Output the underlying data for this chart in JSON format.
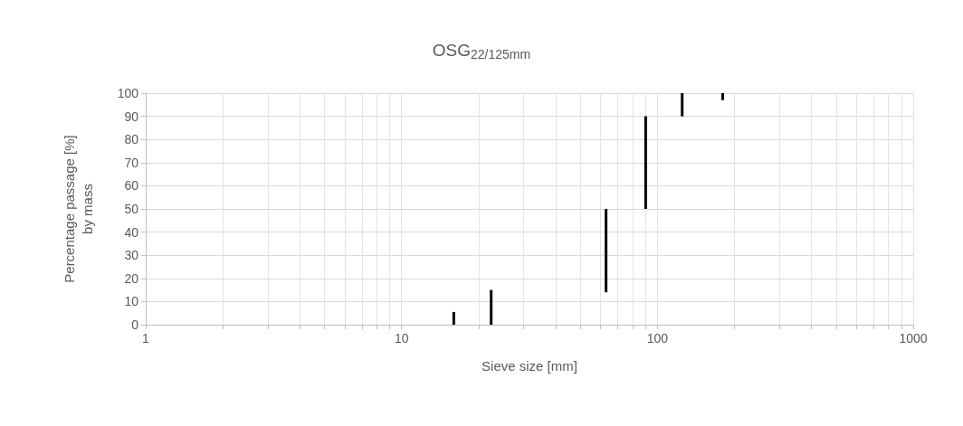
{
  "chart_data": {
    "type": "bar",
    "title": "OSG$_{22/125mm}$",
    "xlabel": "Sieve size [mm]",
    "ylabel": "Percentage passage [%]\nby mass",
    "log": "x",
    "x": [
      16,
      22.4,
      63,
      90,
      125,
      180
    ],
    "base": [
      0,
      0,
      14,
      50,
      90,
      97
    ],
    "values": [
      5.5,
      15,
      36,
      40,
      10,
      3
    ],
    "color": "#000000",
    "xlim": [
      1,
      1000
    ],
    "xticks": [
      1,
      {
        "value": 2,
        "label": null
      },
      {
        "value": 3,
        "label": null
      },
      {
        "value": 4,
        "label": null
      },
      {
        "value": 5,
        "label": null
      },
      {
        "value": 6,
        "label": null
      },
      {
        "value": 7,
        "label": null
      },
      {
        "value": 8,
        "label": null
      },
      {
        "value": 9,
        "label": null
      },
      10,
      {
        "value": 20,
        "label": null
      },
      {
        "value": 30,
        "label": null
      },
      {
        "value": 40,
        "label": null
      },
      {
        "value": 50,
        "label": null
      },
      {
        "value": 60,
        "label": null
      },
      {
        "value": 70,
        "label": null
      },
      {
        "value": 80,
        "label": null
      },
      {
        "value": 90,
        "label": null
      },
      100,
      {
        "value": 200,
        "label": null
      },
      {
        "value": 300,
        "label": null
      },
      {
        "value": 400,
        "label": null
      },
      {
        "value": 500,
        "label": null
      },
      {
        "value": 600,
        "label": null
      },
      {
        "value": 700,
        "label": null
      },
      {
        "value": 800,
        "label": null
      },
      {
        "value": 900,
        "label": null
      },
      1000
    ],
    "ylim": [
      0,
      100
    ],
    "yticks": [
      0,
      10,
      20,
      30,
      40,
      50,
      60,
      70,
      80,
      90,
      100
    ],
    "grid": true
  }
}
